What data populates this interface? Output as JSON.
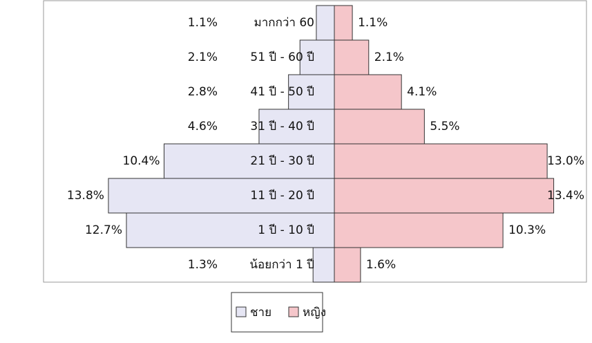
{
  "chart_data": {
    "type": "pyramid",
    "categories": [
      "มากกว่า 60",
      "51 ปี - 60 ปี",
      "41 ปี - 50 ปี",
      "31 ปี - 40 ปี",
      "21 ปี - 30 ปี",
      "11 ปี - 20 ปี",
      "1 ปี - 10 ปี",
      "น้อยกว่า 1 ปี"
    ],
    "series": [
      {
        "name": "ชาย",
        "color": "#e6e6f4",
        "values": [
          1.1,
          2.1,
          2.8,
          4.6,
          10.4,
          13.8,
          12.7,
          1.3
        ],
        "value_labels": [
          "1.1%",
          "2.1%",
          "2.8%",
          "4.6%",
          "10.4%",
          "13.8%",
          "12.7%",
          "1.3%"
        ]
      },
      {
        "name": "หญิง",
        "color": "#f5c6ca",
        "values": [
          1.1,
          2.1,
          4.1,
          5.5,
          13.0,
          13.4,
          10.3,
          1.6
        ],
        "value_labels": [
          "1.1%",
          "2.1%",
          "4.1%",
          "5.5%",
          "13.0%",
          "13.4%",
          "10.3%",
          "1.6%"
        ]
      }
    ]
  }
}
